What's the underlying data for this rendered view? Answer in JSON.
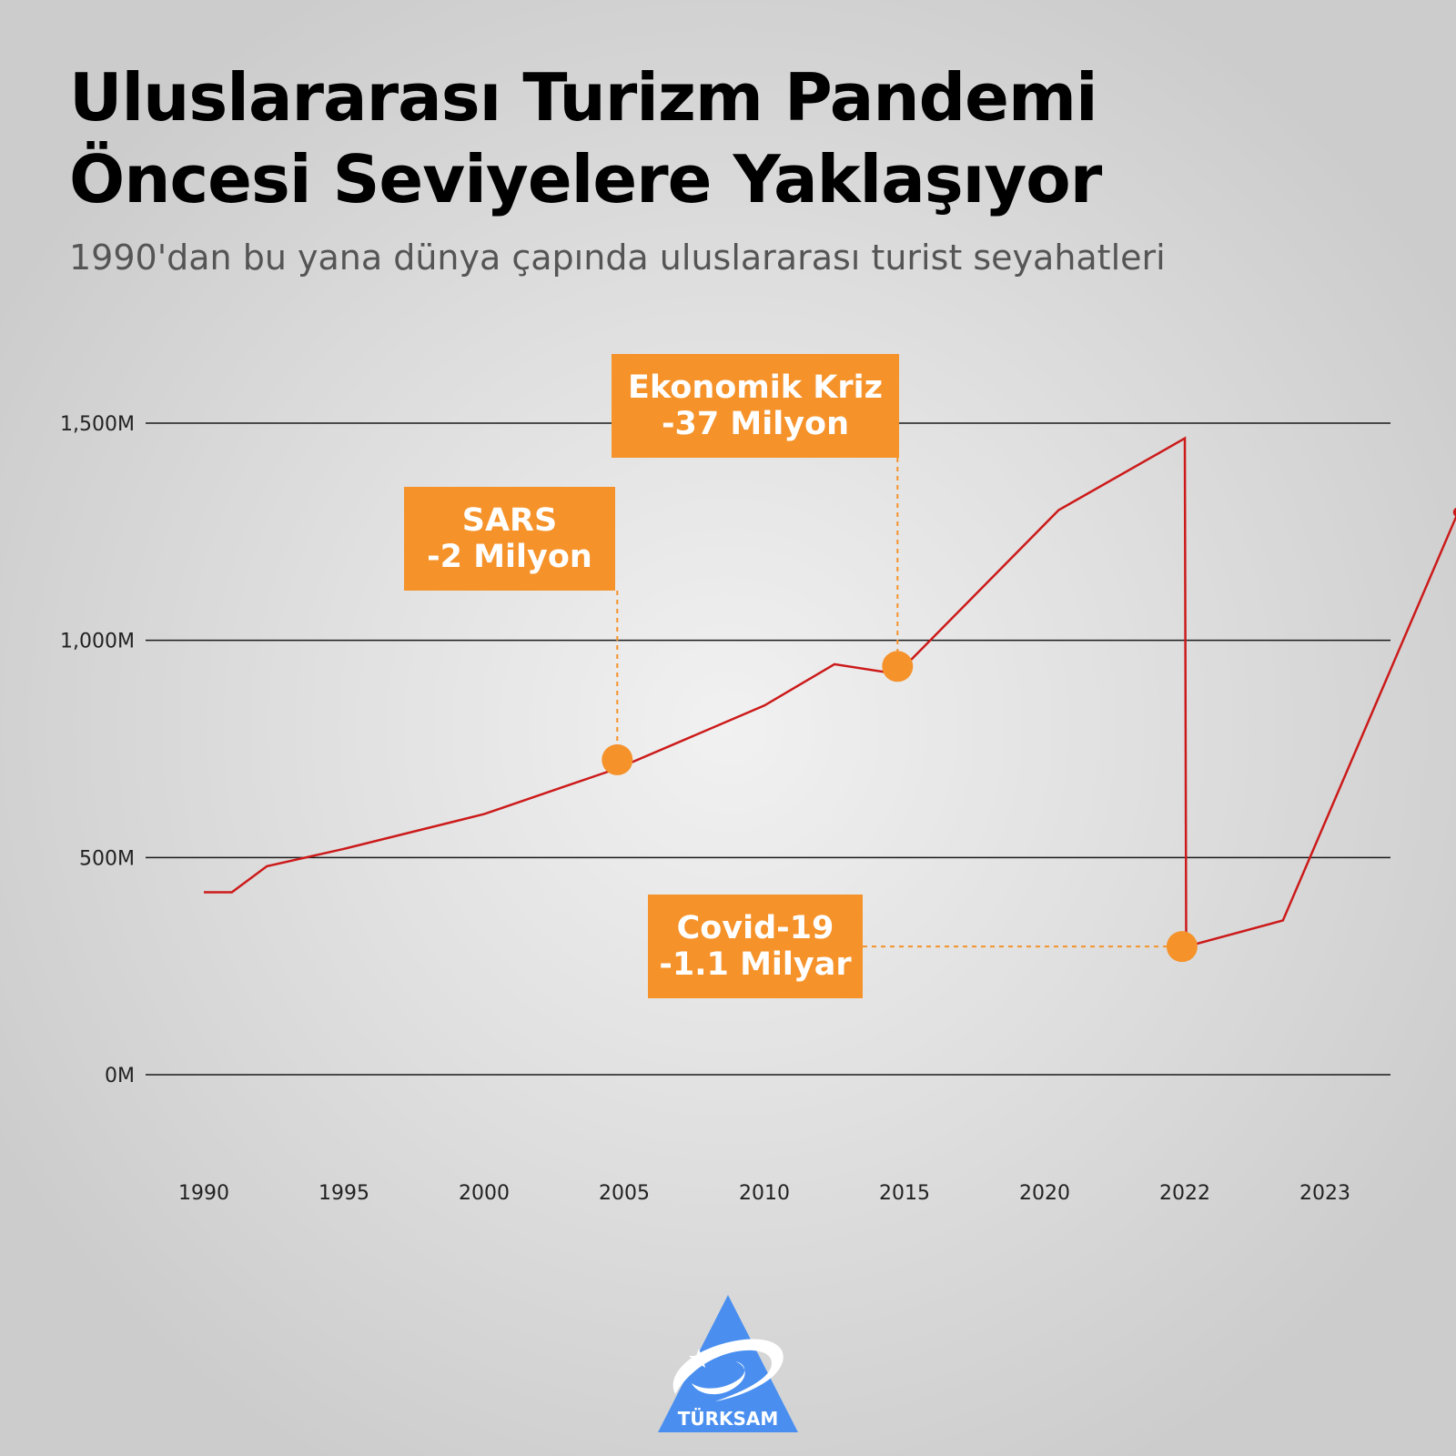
{
  "title_lines": [
    "Uluslararası Turizm Pandemi",
    "Öncesi Seviyelere Yaklaşıyor"
  ],
  "subtitle": "1990'dan bu yana dünya çapında uluslararası turist seyahatleri",
  "colors": {
    "line": "#cc1a1a",
    "annotation": "#f5922a",
    "grid": "#1a1a1a",
    "title": "#000000",
    "subtitle": "#555555",
    "logo": "#4a8ff0"
  },
  "chart_data": {
    "type": "line",
    "title": "",
    "xlabel": "",
    "ylabel": "",
    "y_ticks": [
      {
        "value": 0,
        "label": "0M"
      },
      {
        "value": 500,
        "label": "500M"
      },
      {
        "value": 1000,
        "label": "1,000M"
      },
      {
        "value": 1500,
        "label": "1,500M"
      }
    ],
    "x_tick_labels": [
      "1990",
      "1995",
      "2000",
      "2005",
      "2010",
      "2015",
      "2020",
      "2022",
      "2023"
    ],
    "grid": true,
    "series": [
      {
        "points": [
          {
            "x": 0,
            "y": 420
          },
          {
            "x": 0.2,
            "y": 420
          },
          {
            "x": 0.45,
            "y": 480
          },
          {
            "x": 1,
            "y": 520
          },
          {
            "x": 2,
            "y": 600
          },
          {
            "x": 2.95,
            "y": 705
          },
          {
            "x": 4,
            "y": 850
          },
          {
            "x": 4.5,
            "y": 945
          },
          {
            "x": 4.9,
            "y": 925
          },
          {
            "x": 5,
            "y": 940
          },
          {
            "x": 6.1,
            "y": 1300
          },
          {
            "x": 7,
            "y": 1465
          },
          {
            "x": 7.01,
            "y": 295
          },
          {
            "x": 7.7,
            "y": 355
          },
          {
            "x": 8.95,
            "y": 1295
          }
        ]
      }
    ],
    "annotations": [
      {
        "lines": [
          "SARS",
          "-2 Milyon"
        ],
        "x": 2.95,
        "y": 725
      },
      {
        "lines": [
          "Ekonomik Kriz",
          "-37 Milyon"
        ],
        "x": 4.95,
        "y": 940
      },
      {
        "lines": [
          "Covid-19",
          "-1.1 Milyar"
        ],
        "x": 6.98,
        "y": 295
      }
    ]
  },
  "logo": {
    "text": "TÜRKSAM"
  }
}
